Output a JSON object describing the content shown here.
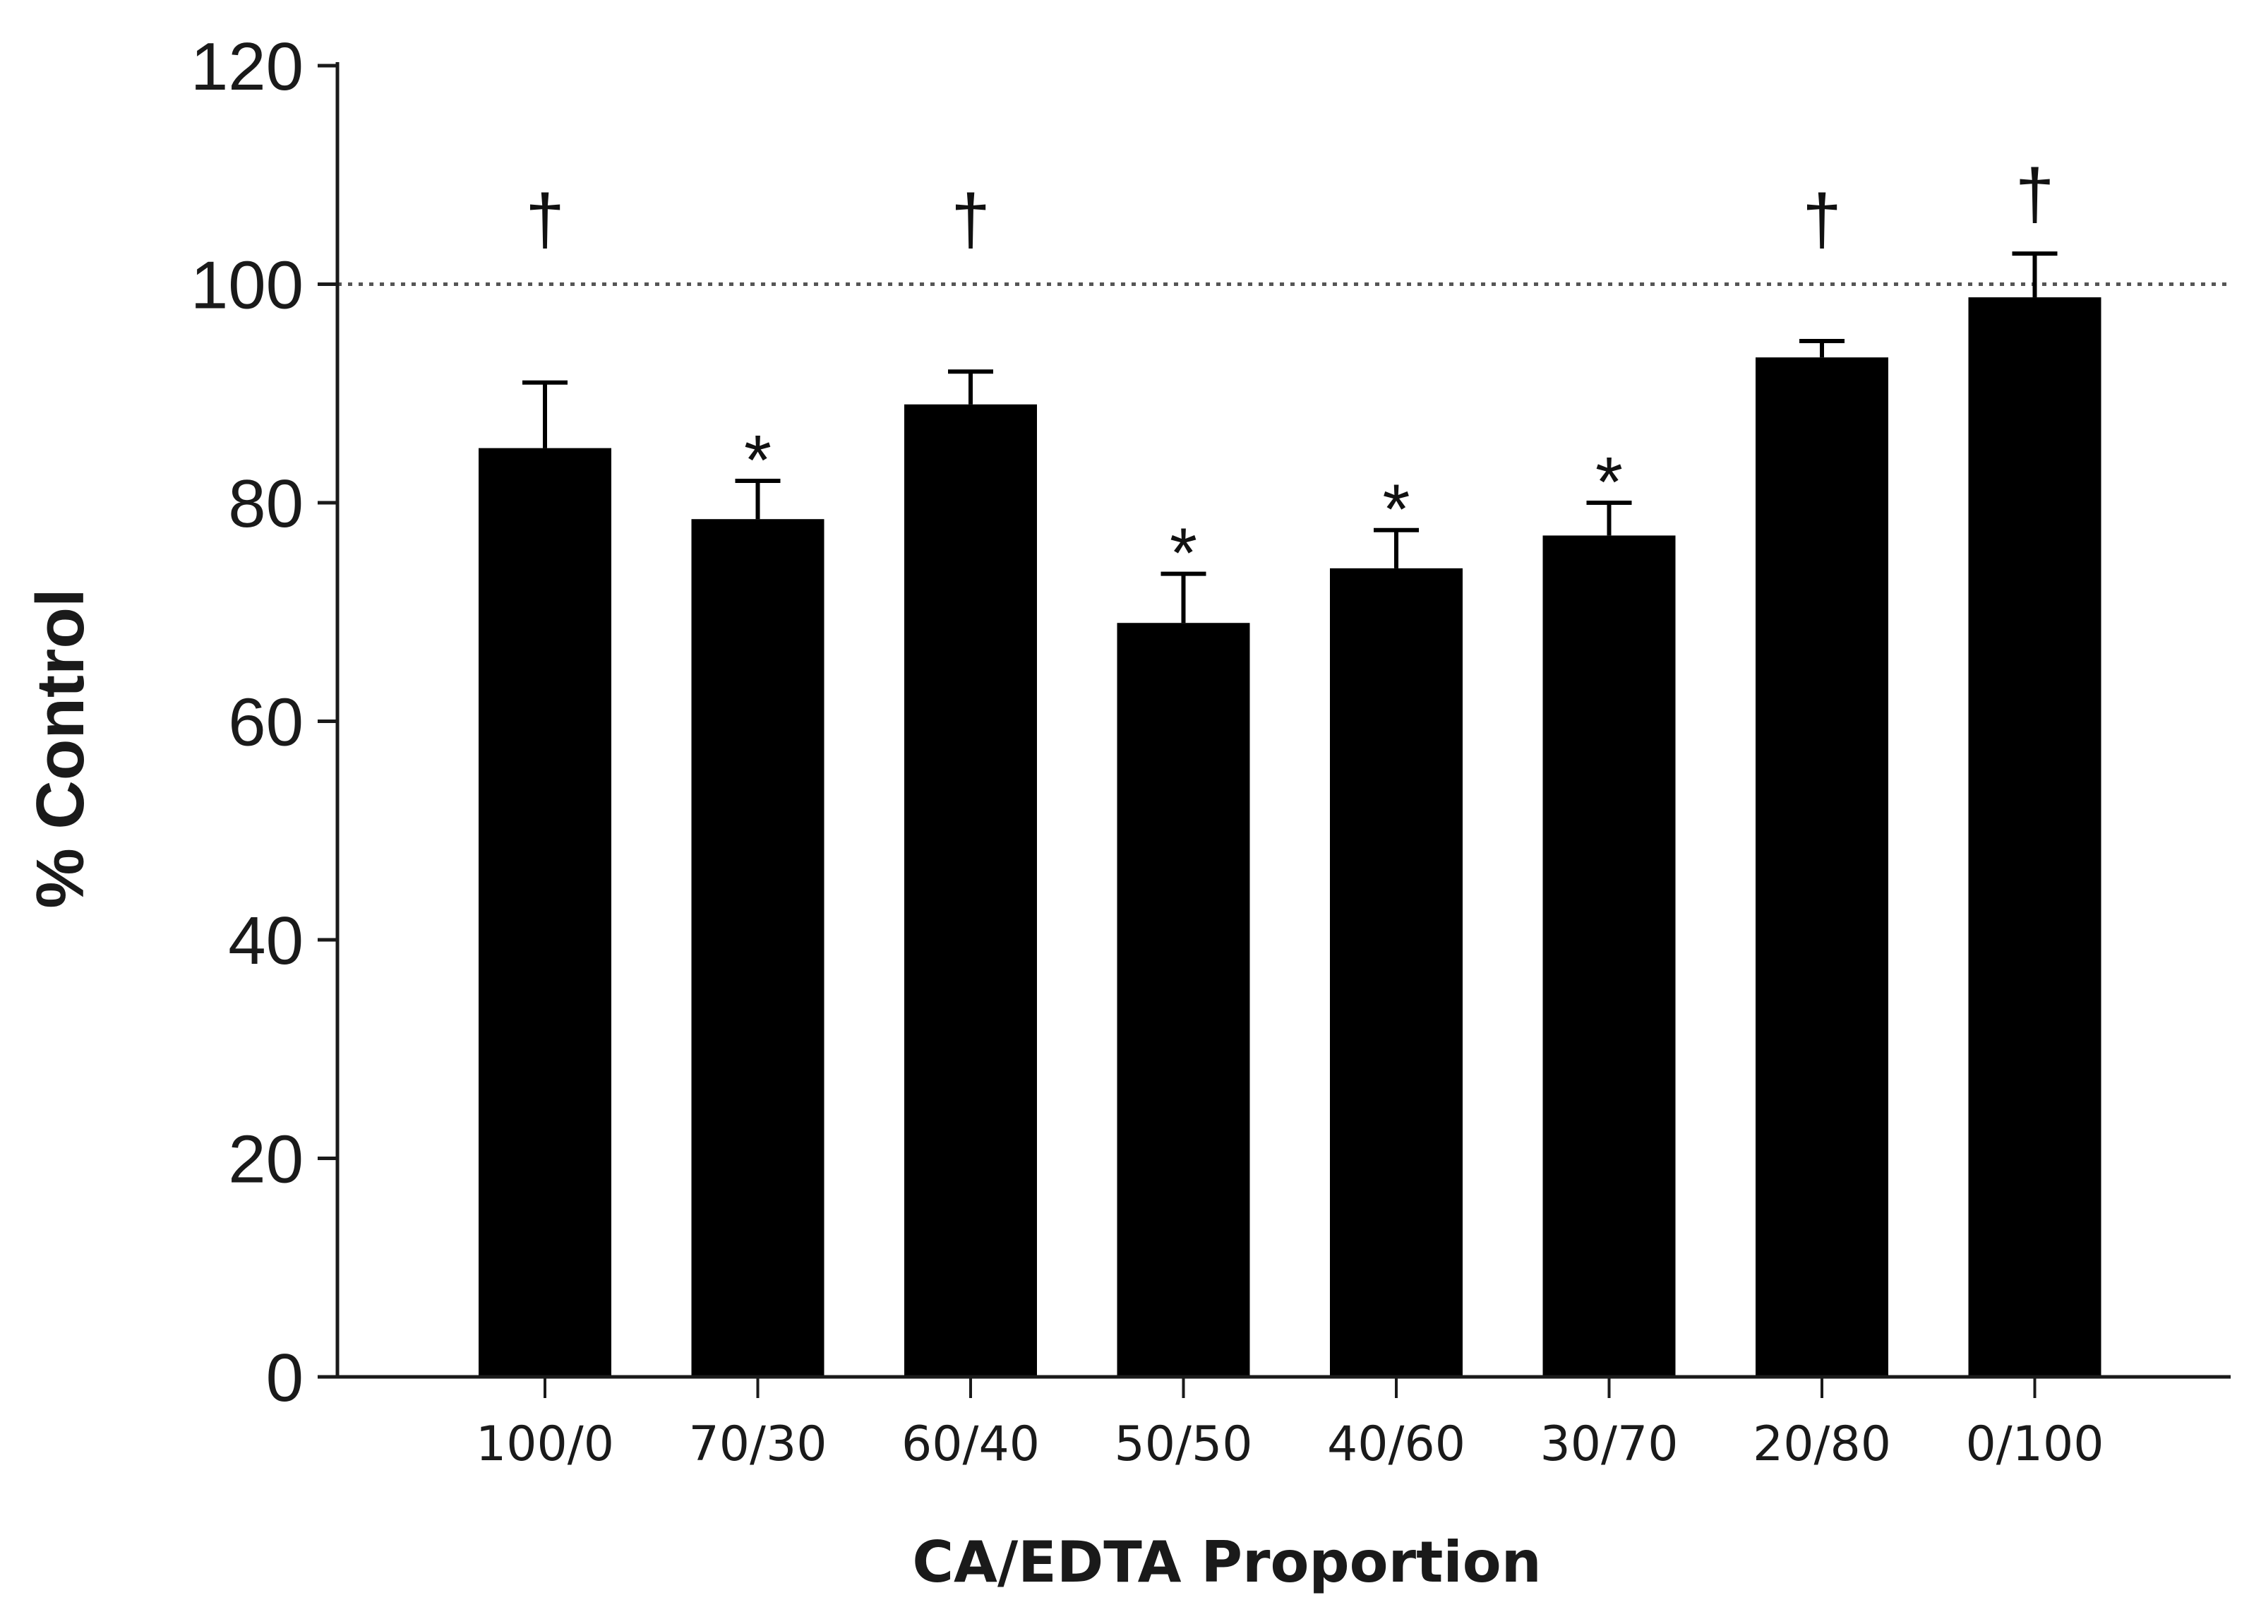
{
  "chart_data": {
    "type": "bar",
    "title": "",
    "xlabel": "CA/EDTA Proportion",
    "ylabel": "% Control",
    "ylim": [
      0,
      120
    ],
    "yticks": [
      0,
      20,
      40,
      60,
      80,
      100,
      120
    ],
    "grid": false,
    "reference_line": {
      "y": 100,
      "style": "dotted"
    },
    "categories": [
      "100/0",
      "70/30",
      "60/40",
      "50/50",
      "40/60",
      "30/70",
      "20/80",
      "0/100"
    ],
    "values": [
      85,
      78.5,
      89,
      69,
      74,
      77,
      93.3,
      98.8
    ],
    "errors": [
      6,
      3.5,
      3,
      4.5,
      3.5,
      3,
      1.5,
      4
    ],
    "annotations": [
      "†",
      "*",
      "†",
      "*",
      "*",
      "*",
      "†",
      "†"
    ],
    "colors": {
      "bar": "#000000",
      "axis": "#1a1a1a",
      "reference": "#555555"
    }
  }
}
